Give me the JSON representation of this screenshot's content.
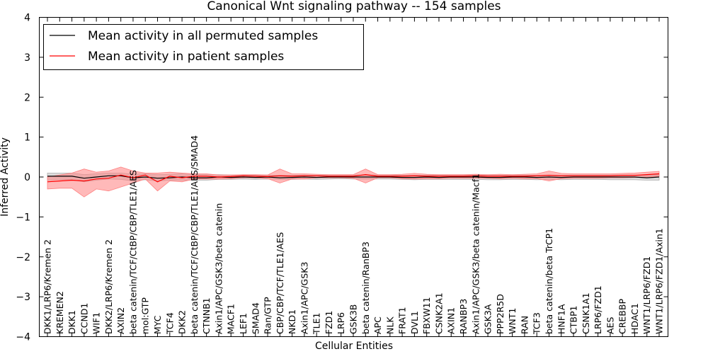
{
  "chart_data": {
    "type": "line",
    "title": "Canonical Wnt signaling pathway -- 154 samples",
    "xlabel": "Cellular Entities",
    "ylabel": "Inferred Activity",
    "ylim": [
      -4,
      4
    ],
    "yticks": [
      "−4",
      "−3",
      "−2",
      "−1",
      "0",
      "1",
      "2",
      "3",
      "4"
    ],
    "grid": false,
    "legend_position": "top-left",
    "colors": {
      "permuted": "#000000",
      "patient": "#ff0000",
      "patient_band": "#ff8080",
      "permuted_band": "#b0b0b0"
    },
    "categories": [
      "DKK1/LRP6/Kremen 2",
      "KREMEN2",
      "DKK1",
      "CCND1",
      "WIF1",
      "DKK2/LRP6/Kremen 2",
      "AXIN2",
      "beta catenin/TCF/CtBP/CBP/TLE1/AES",
      "mol:GTP",
      "MYC",
      "TCF4",
      "DKK2",
      "beta catenin/TCF/CtBP/CBP/TLE1/AES/SMAD4",
      "CTNNB1",
      "Axin1/APC/GSK3/beta catenin",
      "MACF1",
      "LEF1",
      "SMAD4",
      "Ran/GTP",
      "CBP/CBP/TCF/TLE1/AES",
      "NKD1",
      "Axin1/APC/GSK3",
      "TLE1",
      "FZD1",
      "LRP6",
      "GSK3B",
      "beta catenin/RanBP3",
      "APC",
      "NLK",
      "FRAT1",
      "DVL1",
      "FBXW11",
      "CSNK2A1",
      "AXIN1",
      "RANBP3",
      "Axin1/APC/GSK3/beta catenin/Macf1",
      "GSK3A",
      "PPP2R5D",
      "WNT1",
      "RAN",
      "TCF3",
      "beta catenin/beta TrCP1",
      "HNF1A",
      "CTBP1",
      "CSNK1A1",
      "LRP6/FZD1",
      "AES",
      "CREBBP",
      "HDAC1",
      "WNT1/LRP6/FZD1",
      "WNT1/LRP6/FZD1/Axin1"
    ],
    "series": [
      {
        "name": "Mean activity in all permuted samples",
        "color": "#000000",
        "values": [
          0.02,
          0.02,
          0.02,
          -0.03,
          0.0,
          0.03,
          0.03,
          -0.02,
          0.0,
          -0.03,
          -0.02,
          0.0,
          -0.02,
          -0.02,
          0.0,
          -0.01,
          0.0,
          -0.01,
          0.0,
          -0.02,
          -0.01,
          0.0,
          -0.01,
          0.0,
          0.0,
          0.0,
          0.0,
          0.0,
          0.0,
          -0.01,
          -0.01,
          0.0,
          -0.01,
          0.0,
          0.0,
          0.0,
          -0.01,
          -0.01,
          0.0,
          0.0,
          -0.01,
          0.0,
          -0.01,
          0.0,
          0.0,
          0.0,
          0.0,
          0.0,
          0.0,
          -0.02,
          0.0
        ],
        "band_low": [
          -0.08,
          -0.06,
          -0.07,
          -0.12,
          -0.08,
          -0.05,
          -0.06,
          -0.1,
          -0.07,
          -0.1,
          -0.08,
          -0.08,
          -0.08,
          -0.08,
          -0.06,
          -0.06,
          -0.05,
          -0.06,
          -0.05,
          -0.06,
          -0.06,
          -0.05,
          -0.06,
          -0.05,
          -0.04,
          -0.05,
          -0.05,
          -0.05,
          -0.05,
          -0.06,
          -0.07,
          -0.06,
          -0.06,
          -0.06,
          -0.06,
          -0.06,
          -0.07,
          -0.07,
          -0.06,
          -0.06,
          -0.07,
          -0.06,
          -0.07,
          -0.06,
          -0.06,
          -0.06,
          -0.07,
          -0.07,
          -0.07,
          -0.08,
          -0.08
        ],
        "band_high": [
          0.1,
          0.1,
          0.1,
          0.06,
          0.08,
          0.1,
          0.1,
          0.07,
          0.08,
          0.06,
          0.07,
          0.08,
          0.06,
          0.06,
          0.06,
          0.05,
          0.05,
          0.05,
          0.05,
          0.04,
          0.04,
          0.05,
          0.04,
          0.05,
          0.05,
          0.05,
          0.05,
          0.05,
          0.05,
          0.04,
          0.04,
          0.05,
          0.04,
          0.05,
          0.05,
          0.05,
          0.04,
          0.04,
          0.05,
          0.05,
          0.04,
          0.05,
          0.04,
          0.05,
          0.05,
          0.05,
          0.05,
          0.05,
          0.05,
          0.04,
          0.06
        ]
      },
      {
        "name": "Mean activity in patient samples",
        "color": "#ff0000",
        "values": [
          -0.12,
          -0.1,
          -0.08,
          -0.1,
          -0.05,
          -0.03,
          0.05,
          -0.02,
          0.05,
          -0.12,
          0.02,
          -0.02,
          0.02,
          0.02,
          0.0,
          0.01,
          0.03,
          0.02,
          0.01,
          0.03,
          0.02,
          0.03,
          0.03,
          0.02,
          0.02,
          0.02,
          0.06,
          0.02,
          0.02,
          0.02,
          0.03,
          0.02,
          0.02,
          0.02,
          0.02,
          0.03,
          0.02,
          0.02,
          0.02,
          0.02,
          0.03,
          0.04,
          0.03,
          0.03,
          0.03,
          0.03,
          0.03,
          0.04,
          0.04,
          0.06,
          0.08
        ],
        "band_low": [
          -0.3,
          -0.28,
          -0.28,
          -0.5,
          -0.3,
          -0.35,
          -0.25,
          -0.15,
          -0.05,
          -0.35,
          -0.1,
          -0.12,
          -0.05,
          -0.05,
          -0.05,
          -0.04,
          -0.02,
          -0.02,
          -0.04,
          -0.15,
          -0.05,
          -0.05,
          -0.02,
          -0.02,
          -0.02,
          -0.03,
          -0.15,
          -0.02,
          -0.02,
          -0.04,
          -0.05,
          -0.04,
          -0.04,
          -0.03,
          -0.03,
          -0.03,
          -0.03,
          -0.04,
          -0.03,
          -0.04,
          -0.04,
          -0.1,
          -0.04,
          -0.03,
          -0.03,
          -0.03,
          -0.02,
          -0.02,
          -0.01,
          0.0,
          0.02
        ],
        "band_high": [
          0.0,
          0.05,
          0.1,
          0.2,
          0.12,
          0.15,
          0.25,
          0.15,
          0.1,
          0.1,
          0.12,
          0.1,
          0.08,
          0.08,
          0.05,
          0.05,
          0.06,
          0.06,
          0.05,
          0.2,
          0.08,
          0.08,
          0.07,
          0.06,
          0.06,
          0.06,
          0.2,
          0.06,
          0.06,
          0.07,
          0.09,
          0.07,
          0.06,
          0.06,
          0.06,
          0.07,
          0.06,
          0.07,
          0.06,
          0.07,
          0.08,
          0.15,
          0.09,
          0.08,
          0.08,
          0.08,
          0.08,
          0.09,
          0.1,
          0.12,
          0.14
        ]
      }
    ]
  }
}
